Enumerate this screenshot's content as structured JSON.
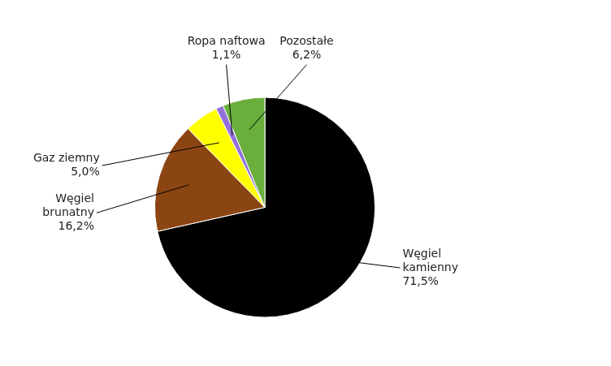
{
  "chart_data": {
    "type": "pie",
    "categories": [
      "Węgiel\nkamienny",
      "Węgiel\nbrunatny",
      "Gaz ziemny",
      "Ropa naftowa",
      "Pozostałe"
    ],
    "values": [
      71.5,
      16.2,
      5.0,
      1.1,
      6.2
    ],
    "value_labels": [
      "71,5%",
      "16,2%",
      "5,0%",
      "1,1%",
      "6,2%"
    ],
    "colors": [
      "#000000",
      "#8B4513",
      "#FFFF00",
      "#9370DB",
      "#6AAF3D"
    ],
    "data_labels": true
  }
}
